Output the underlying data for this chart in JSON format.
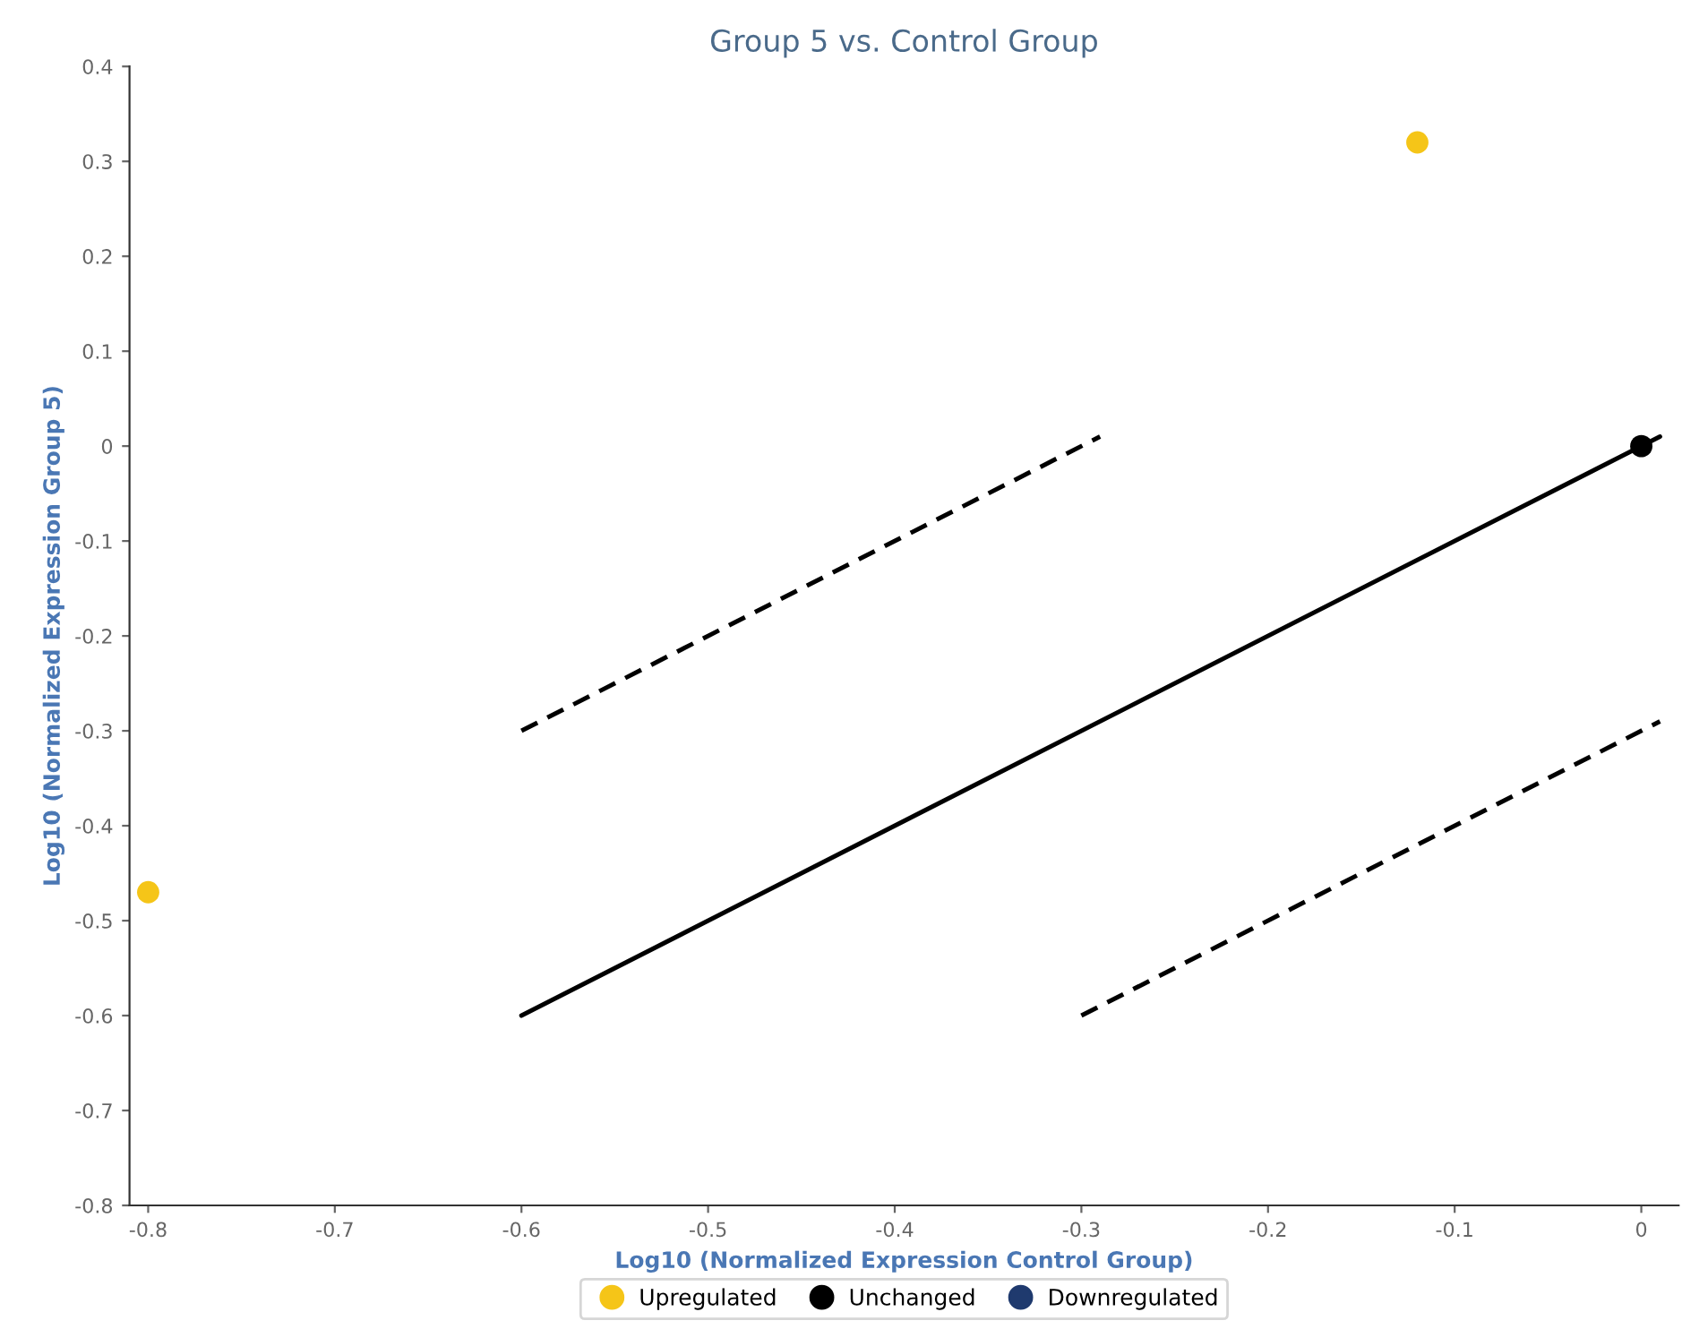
{
  "chart_data": {
    "type": "scatter",
    "title": "Group 5 vs. Control Group",
    "xlabel": "Log10 (Normalized Expression Control Group)",
    "ylabel": "Log10 (Normalized Expression Group 5)",
    "xlim": [
      -0.81,
      0.02
    ],
    "ylim": [
      -0.8,
      0.4
    ],
    "xticks": [
      -0.8,
      -0.7,
      -0.6,
      -0.5,
      -0.4,
      -0.3,
      -0.2,
      -0.1,
      0
    ],
    "yticks": [
      -0.8,
      -0.7,
      -0.6,
      -0.5,
      -0.4,
      -0.3,
      -0.2,
      -0.1,
      0,
      0.1,
      0.2,
      0.3,
      0.4
    ],
    "grid": false,
    "legend": "bottom",
    "marker": "circle",
    "series": [
      {
        "name": "Upregulated",
        "color": "#f5c518",
        "x": [
          -0.12,
          -0.8
        ],
        "values": [
          0.32,
          -0.47
        ]
      },
      {
        "name": "Unchanged",
        "color": "#000000",
        "x": [
          0
        ],
        "values": [
          0
        ]
      },
      {
        "name": "Downregulated",
        "color": "#1f3a6e"
      },
      {
        "type": "line",
        "color": "#000000",
        "line_style": "solid",
        "marker": "none",
        "x": [
          -0.6,
          0.01
        ],
        "values": [
          -0.6,
          0.01
        ]
      },
      {
        "type": "line",
        "color": "#000000",
        "line_style": "dashed",
        "marker": "none",
        "x": [
          -0.6,
          -0.29
        ],
        "values": [
          -0.3,
          0.01
        ]
      },
      {
        "type": "line",
        "color": "#000000",
        "line_style": "dashed",
        "marker": "none",
        "x": [
          -0.3,
          0.01
        ],
        "values": [
          -0.6,
          -0.29
        ]
      }
    ]
  }
}
